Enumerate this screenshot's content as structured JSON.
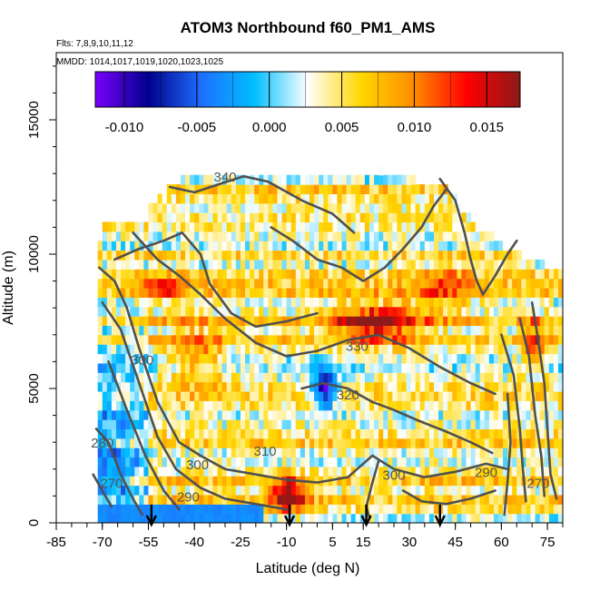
{
  "chart_data": {
    "type": "heatmap",
    "title": "ATOM3 Northbound f60_PM1_AMS",
    "subtitle_flights": "Flts: 7,8,9,10,11,12",
    "subtitle_dates": "MMDD: 1014,1017,1019,1020,1023,1025",
    "xlabel": "Latitude (deg N)",
    "ylabel": "Altitude (m)",
    "xlim": [
      -85,
      80
    ],
    "ylim": [
      0,
      17500
    ],
    "x_ticks": [
      -85,
      -70,
      -55,
      -40,
      -25,
      -10,
      5,
      15,
      30,
      45,
      60,
      75
    ],
    "x_tick_labels": [
      "-85",
      "-70",
      "-55",
      "-40",
      "-25",
      "-10",
      "5",
      "15",
      "30",
      "45",
      "60",
      "75"
    ],
    "y_ticks": [
      0,
      5000,
      10000,
      15000
    ],
    "y_tick_labels": [
      "0",
      "5000",
      "10000",
      "15000"
    ],
    "colorbar": {
      "min": -0.012,
      "max": 0.0173,
      "ticks": [
        -0.01,
        -0.005,
        0.0,
        0.005,
        0.01,
        0.015
      ],
      "tick_labels": [
        "-0.010",
        "-0.005",
        "0.000",
        "0.005",
        "0.010",
        "0.015"
      ],
      "colors": [
        "#7a00ff",
        "#00008b",
        "#1e6fff",
        "#00bfff",
        "#ffffff",
        "#ffd700",
        "#ff8c00",
        "#ff0000",
        "#8b1a1a"
      ]
    },
    "contour_labels": [
      {
        "text": "340",
        "lat": -30,
        "alt": 12700
      },
      {
        "text": "330",
        "lat": 13,
        "alt": 6400
      },
      {
        "text": "320",
        "lat": 10,
        "alt": 4600
      },
      {
        "text": "310",
        "lat": -17,
        "alt": 2500
      },
      {
        "text": "300",
        "lat": -57,
        "alt": 5900
      },
      {
        "text": "300",
        "lat": -39,
        "alt": 2000
      },
      {
        "text": "300",
        "lat": 25,
        "alt": 1600
      },
      {
        "text": "290",
        "lat": -42,
        "alt": 800
      },
      {
        "text": "290",
        "lat": 55,
        "alt": 1700
      },
      {
        "text": "280",
        "lat": -70,
        "alt": 2800
      },
      {
        "text": "270",
        "lat": -67,
        "alt": 1300
      },
      {
        "text": "270",
        "lat": 72,
        "alt": 1300
      }
    ],
    "arrow_latitudes": [
      -54,
      -9,
      16,
      40
    ],
    "grid": false
  }
}
